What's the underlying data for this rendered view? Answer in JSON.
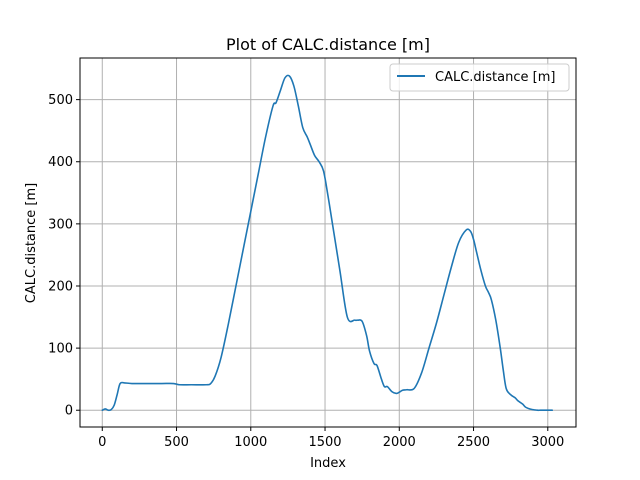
{
  "chart_data": {
    "type": "line",
    "title": "Plot of CALC.distance [m]",
    "xlabel": "Index",
    "ylabel": "CALC.distance [m]",
    "xlim": [
      -150,
      3190
    ],
    "ylim": [
      -27,
      567
    ],
    "x_ticks": [
      0,
      500,
      1000,
      1500,
      2000,
      2500,
      3000
    ],
    "y_ticks": [
      0,
      100,
      200,
      300,
      400,
      500
    ],
    "grid": true,
    "legend_position": "top-right",
    "colors": {
      "series": "#1f77b4",
      "grid": "#b0b0b0",
      "axes": "#000000"
    },
    "series": [
      {
        "name": "CALC.distance [m]",
        "x": [
          0,
          20,
          40,
          60,
          80,
          100,
          120,
          150,
          200,
          300,
          400,
          480,
          520,
          600,
          700,
          730,
          760,
          800,
          850,
          900,
          950,
          1000,
          1050,
          1100,
          1150,
          1170,
          1200,
          1230,
          1260,
          1290,
          1320,
          1350,
          1380,
          1400,
          1430,
          1460,
          1490,
          1520,
          1550,
          1600,
          1650,
          1700,
          1720,
          1750,
          1780,
          1800,
          1830,
          1850,
          1880,
          1900,
          1920,
          1950,
          1980,
          2000,
          2020,
          2050,
          2100,
          2150,
          2200,
          2250,
          2300,
          2350,
          2400,
          2450,
          2480,
          2500,
          2520,
          2550,
          2580,
          2600,
          2620,
          2650,
          2680,
          2700,
          2720,
          2750,
          2780,
          2800,
          2830,
          2850,
          2880,
          2900,
          2930,
          2950,
          3000,
          3030
        ],
        "y": [
          0,
          2,
          0,
          1,
          8,
          25,
          43,
          44,
          43,
          43,
          43,
          43,
          41,
          41,
          41,
          43,
          55,
          85,
          140,
          200,
          260,
          320,
          380,
          440,
          490,
          495,
          515,
          535,
          538,
          522,
          490,
          455,
          440,
          428,
          410,
          400,
          385,
          345,
          300,
          225,
          150,
          145,
          145,
          143,
          120,
          95,
          75,
          72,
          50,
          38,
          38,
          30,
          27,
          29,
          32,
          33,
          35,
          60,
          100,
          140,
          185,
          230,
          270,
          290,
          288,
          275,
          255,
          225,
          200,
          190,
          178,
          145,
          100,
          65,
          35,
          25,
          20,
          15,
          10,
          5,
          2,
          1,
          0,
          0,
          0,
          0
        ]
      }
    ]
  }
}
